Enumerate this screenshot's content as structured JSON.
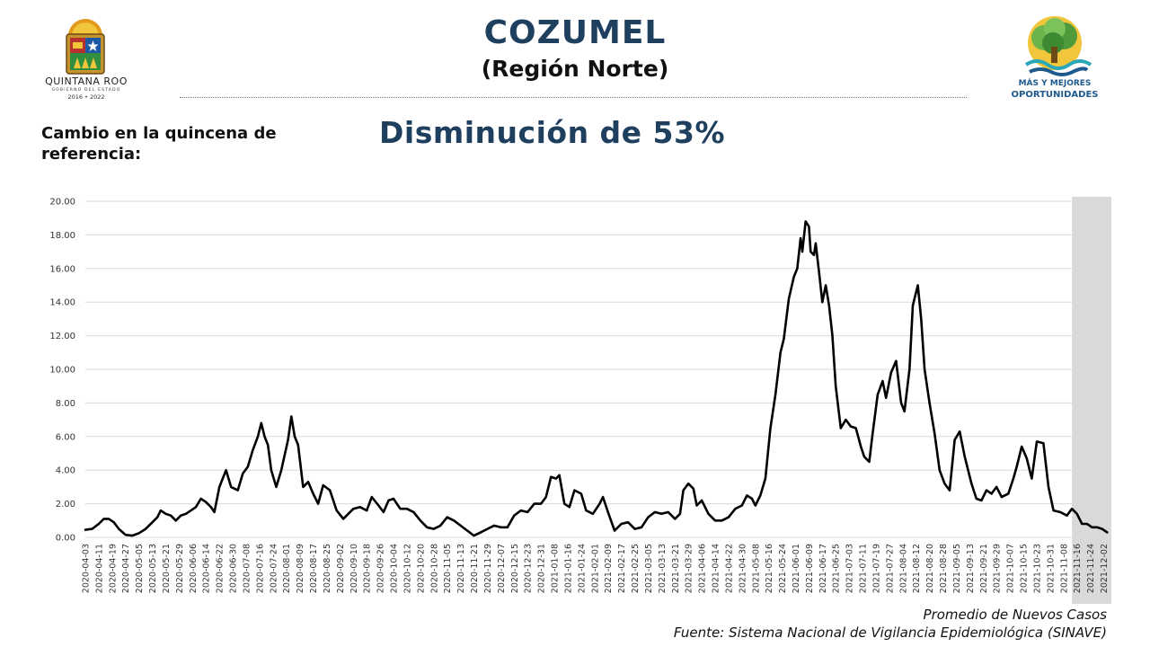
{
  "header": {
    "title": "COZUMEL",
    "subtitle": "(Región Norte)",
    "change_label": "Cambio en la quincena de referencia:",
    "headline": "Disminución de 53%"
  },
  "logo_left": {
    "state_name": "QUINTANA ROO",
    "government": "GOBIERNO DEL ESTADO",
    "period": "2016 • 2022"
  },
  "logo_right": {
    "slogan_line1": "MÁS Y MEJORES",
    "slogan_line2": "OPORTUNIDADES"
  },
  "footer": {
    "series_label": "Promedio de Nuevos Casos",
    "source": "Fuente: Sistema Nacional de Vigilancia Epidemiológica (SINAVE)"
  },
  "colors": {
    "title": "#1f3f5f",
    "line": "#000000",
    "grid": "#d9d9d9",
    "highlight": "#d9d9d9"
  },
  "chart_data": {
    "type": "line",
    "ylim": [
      0,
      20
    ],
    "yticks": [
      "0.00",
      "2.00",
      "4.00",
      "6.00",
      "8.00",
      "10.00",
      "12.00",
      "14.00",
      "16.00",
      "18.00",
      "20.00"
    ],
    "x_start": "2020-04-03",
    "x_end": "2021-12-06",
    "shaded_region": [
      "2021-11-13",
      "2021-12-06"
    ],
    "xticks": [
      "2020-04-03",
      "2020-04-11",
      "2020-04-19",
      "2020-04-27",
      "2020-05-05",
      "2020-05-13",
      "2020-05-21",
      "2020-05-29",
      "2020-06-06",
      "2020-06-14",
      "2020-06-22",
      "2020-06-30",
      "2020-07-08",
      "2020-07-16",
      "2020-07-24",
      "2020-08-01",
      "2020-08-09",
      "2020-08-17",
      "2020-08-25",
      "2020-09-02",
      "2020-09-10",
      "2020-09-18",
      "2020-09-26",
      "2020-10-04",
      "2020-10-12",
      "2020-10-20",
      "2020-10-28",
      "2020-11-05",
      "2020-11-13",
      "2020-11-21",
      "2020-11-29",
      "2020-12-07",
      "2020-12-15",
      "2020-12-23",
      "2020-12-31",
      "2021-01-08",
      "2021-01-16",
      "2021-01-24",
      "2021-02-01",
      "2021-02-09",
      "2021-02-17",
      "2021-02-25",
      "2021-03-05",
      "2021-03-13",
      "2021-03-21",
      "2021-03-29",
      "2021-04-06",
      "2021-04-14",
      "2021-04-22",
      "2021-04-30",
      "2021-05-08",
      "2021-05-16",
      "2021-05-24",
      "2021-06-01",
      "2021-06-09",
      "2021-06-17",
      "2021-06-25",
      "2021-07-03",
      "2021-07-11",
      "2021-07-19",
      "2021-07-27",
      "2021-08-04",
      "2021-08-12",
      "2021-08-20",
      "2021-08-28",
      "2021-09-05",
      "2021-09-13",
      "2021-09-21",
      "2021-09-29",
      "2021-10-07",
      "2021-10-15",
      "2021-10-23",
      "2021-10-31",
      "2021-11-08",
      "2021-11-16",
      "2021-11-24",
      "2021-12-02"
    ],
    "series": [
      {
        "points": [
          [
            "2020-04-03",
            0.45
          ],
          [
            "2020-04-07",
            0.5
          ],
          [
            "2020-04-11",
            0.8
          ],
          [
            "2020-04-14",
            1.1
          ],
          [
            "2020-04-17",
            1.1
          ],
          [
            "2020-04-20",
            0.9
          ],
          [
            "2020-04-23",
            0.5
          ],
          [
            "2020-04-27",
            0.15
          ],
          [
            "2020-05-01",
            0.1
          ],
          [
            "2020-05-05",
            0.25
          ],
          [
            "2020-05-09",
            0.5
          ],
          [
            "2020-05-13",
            0.9
          ],
          [
            "2020-05-16",
            1.2
          ],
          [
            "2020-05-18",
            1.6
          ],
          [
            "2020-05-21",
            1.4
          ],
          [
            "2020-05-24",
            1.3
          ],
          [
            "2020-05-27",
            1.0
          ],
          [
            "2020-05-30",
            1.3
          ],
          [
            "2020-06-02",
            1.4
          ],
          [
            "2020-06-05",
            1.6
          ],
          [
            "2020-06-08",
            1.8
          ],
          [
            "2020-06-11",
            2.3
          ],
          [
            "2020-06-14",
            2.1
          ],
          [
            "2020-06-17",
            1.8
          ],
          [
            "2020-06-19",
            1.5
          ],
          [
            "2020-06-22",
            3.0
          ],
          [
            "2020-06-26",
            4.0
          ],
          [
            "2020-06-29",
            3.0
          ],
          [
            "2020-07-03",
            2.8
          ],
          [
            "2020-07-06",
            3.8
          ],
          [
            "2020-07-09",
            4.2
          ],
          [
            "2020-07-12",
            5.2
          ],
          [
            "2020-07-15",
            6.0
          ],
          [
            "2020-07-17",
            6.8
          ],
          [
            "2020-07-19",
            6.0
          ],
          [
            "2020-07-21",
            5.5
          ],
          [
            "2020-07-23",
            4.0
          ],
          [
            "2020-07-26",
            3.0
          ],
          [
            "2020-07-29",
            4.0
          ],
          [
            "2020-08-02",
            5.8
          ],
          [
            "2020-08-04",
            7.2
          ],
          [
            "2020-08-06",
            6.0
          ],
          [
            "2020-08-08",
            5.5
          ],
          [
            "2020-08-11",
            3.0
          ],
          [
            "2020-08-14",
            3.3
          ],
          [
            "2020-08-17",
            2.6
          ],
          [
            "2020-08-20",
            2.0
          ],
          [
            "2020-08-23",
            3.1
          ],
          [
            "2020-08-27",
            2.8
          ],
          [
            "2020-08-31",
            1.6
          ],
          [
            "2020-09-04",
            1.1
          ],
          [
            "2020-09-07",
            1.4
          ],
          [
            "2020-09-10",
            1.7
          ],
          [
            "2020-09-14",
            1.8
          ],
          [
            "2020-09-18",
            1.6
          ],
          [
            "2020-09-21",
            2.4
          ],
          [
            "2020-09-25",
            1.9
          ],
          [
            "2020-09-28",
            1.5
          ],
          [
            "2020-10-01",
            2.2
          ],
          [
            "2020-10-04",
            2.3
          ],
          [
            "2020-10-08",
            1.7
          ],
          [
            "2020-10-12",
            1.7
          ],
          [
            "2020-10-16",
            1.5
          ],
          [
            "2020-10-20",
            1.0
          ],
          [
            "2020-10-24",
            0.6
          ],
          [
            "2020-10-28",
            0.5
          ],
          [
            "2020-11-01",
            0.7
          ],
          [
            "2020-11-05",
            1.2
          ],
          [
            "2020-11-09",
            1.0
          ],
          [
            "2020-11-13",
            0.7
          ],
          [
            "2020-11-17",
            0.4
          ],
          [
            "2020-11-21",
            0.1
          ],
          [
            "2020-11-25",
            0.3
          ],
          [
            "2020-11-29",
            0.5
          ],
          [
            "2020-12-03",
            0.7
          ],
          [
            "2020-12-07",
            0.6
          ],
          [
            "2020-12-11",
            0.6
          ],
          [
            "2020-12-15",
            1.3
          ],
          [
            "2020-12-19",
            1.6
          ],
          [
            "2020-12-23",
            1.5
          ],
          [
            "2020-12-27",
            2.0
          ],
          [
            "2020-12-31",
            2.0
          ],
          [
            "2021-01-03",
            2.4
          ],
          [
            "2021-01-06",
            3.6
          ],
          [
            "2021-01-09",
            3.5
          ],
          [
            "2021-01-11",
            3.7
          ],
          [
            "2021-01-14",
            2.0
          ],
          [
            "2021-01-17",
            1.8
          ],
          [
            "2021-01-20",
            2.8
          ],
          [
            "2021-01-24",
            2.6
          ],
          [
            "2021-01-27",
            1.6
          ],
          [
            "2021-01-31",
            1.4
          ],
          [
            "2021-02-04",
            2.0
          ],
          [
            "2021-02-06",
            2.4
          ],
          [
            "2021-02-09",
            1.5
          ],
          [
            "2021-02-13",
            0.4
          ],
          [
            "2021-02-17",
            0.8
          ],
          [
            "2021-02-21",
            0.9
          ],
          [
            "2021-02-25",
            0.5
          ],
          [
            "2021-03-01",
            0.6
          ],
          [
            "2021-03-05",
            1.2
          ],
          [
            "2021-03-09",
            1.5
          ],
          [
            "2021-03-13",
            1.4
          ],
          [
            "2021-03-17",
            1.5
          ],
          [
            "2021-03-21",
            1.1
          ],
          [
            "2021-03-24",
            1.4
          ],
          [
            "2021-03-26",
            2.8
          ],
          [
            "2021-03-29",
            3.2
          ],
          [
            "2021-04-01",
            2.9
          ],
          [
            "2021-04-03",
            1.9
          ],
          [
            "2021-04-06",
            2.2
          ],
          [
            "2021-04-10",
            1.4
          ],
          [
            "2021-04-14",
            1.0
          ],
          [
            "2021-04-18",
            1.0
          ],
          [
            "2021-04-22",
            1.2
          ],
          [
            "2021-04-26",
            1.7
          ],
          [
            "2021-04-30",
            1.9
          ],
          [
            "2021-05-03",
            2.5
          ],
          [
            "2021-05-06",
            2.3
          ],
          [
            "2021-05-08",
            1.9
          ],
          [
            "2021-05-11",
            2.5
          ],
          [
            "2021-05-14",
            3.5
          ],
          [
            "2021-05-17",
            6.5
          ],
          [
            "2021-05-20",
            8.5
          ],
          [
            "2021-05-23",
            11.0
          ],
          [
            "2021-05-25",
            11.8
          ],
          [
            "2021-05-28",
            14.2
          ],
          [
            "2021-05-31",
            15.5
          ],
          [
            "2021-06-02",
            16.0
          ],
          [
            "2021-06-04",
            17.8
          ],
          [
            "2021-06-05",
            17.0
          ],
          [
            "2021-06-07",
            18.8
          ],
          [
            "2021-06-09",
            18.5
          ],
          [
            "2021-06-10",
            17.0
          ],
          [
            "2021-06-12",
            16.8
          ],
          [
            "2021-06-13",
            17.5
          ],
          [
            "2021-06-15",
            15.8
          ],
          [
            "2021-06-17",
            14.0
          ],
          [
            "2021-06-19",
            15.0
          ],
          [
            "2021-06-21",
            13.8
          ],
          [
            "2021-06-23",
            12.0
          ],
          [
            "2021-06-25",
            9.0
          ],
          [
            "2021-06-28",
            6.5
          ],
          [
            "2021-07-01",
            7.0
          ],
          [
            "2021-07-04",
            6.6
          ],
          [
            "2021-07-07",
            6.5
          ],
          [
            "2021-07-10",
            5.4
          ],
          [
            "2021-07-12",
            4.8
          ],
          [
            "2021-07-15",
            4.5
          ],
          [
            "2021-07-17",
            6.2
          ],
          [
            "2021-07-20",
            8.5
          ],
          [
            "2021-07-23",
            9.3
          ],
          [
            "2021-07-25",
            8.3
          ],
          [
            "2021-07-28",
            9.8
          ],
          [
            "2021-07-31",
            10.5
          ],
          [
            "2021-08-03",
            8.0
          ],
          [
            "2021-08-05",
            7.5
          ],
          [
            "2021-08-08",
            10.0
          ],
          [
            "2021-08-10",
            13.8
          ],
          [
            "2021-08-13",
            15.0
          ],
          [
            "2021-08-15",
            13.0
          ],
          [
            "2021-08-17",
            10.0
          ],
          [
            "2021-08-20",
            8.0
          ],
          [
            "2021-08-23",
            6.2
          ],
          [
            "2021-08-26",
            4.0
          ],
          [
            "2021-08-29",
            3.2
          ],
          [
            "2021-09-01",
            2.8
          ],
          [
            "2021-09-04",
            5.8
          ],
          [
            "2021-09-07",
            6.3
          ],
          [
            "2021-09-10",
            4.8
          ],
          [
            "2021-09-14",
            3.2
          ],
          [
            "2021-09-17",
            2.3
          ],
          [
            "2021-09-20",
            2.2
          ],
          [
            "2021-09-23",
            2.8
          ],
          [
            "2021-09-26",
            2.6
          ],
          [
            "2021-09-29",
            3.0
          ],
          [
            "2021-10-02",
            2.4
          ],
          [
            "2021-10-06",
            2.6
          ],
          [
            "2021-10-09",
            3.5
          ],
          [
            "2021-10-11",
            4.2
          ],
          [
            "2021-10-14",
            5.4
          ],
          [
            "2021-10-17",
            4.7
          ],
          [
            "2021-10-20",
            3.5
          ],
          [
            "2021-10-23",
            5.7
          ],
          [
            "2021-10-27",
            5.6
          ],
          [
            "2021-10-30",
            3.0
          ],
          [
            "2021-11-02",
            1.6
          ],
          [
            "2021-11-06",
            1.5
          ],
          [
            "2021-11-10",
            1.3
          ],
          [
            "2021-11-13",
            1.7
          ],
          [
            "2021-11-16",
            1.4
          ],
          [
            "2021-11-19",
            0.8
          ],
          [
            "2021-11-22",
            0.8
          ],
          [
            "2021-11-25",
            0.6
          ],
          [
            "2021-11-28",
            0.6
          ],
          [
            "2021-12-01",
            0.5
          ],
          [
            "2021-12-04",
            0.3
          ]
        ]
      }
    ]
  }
}
